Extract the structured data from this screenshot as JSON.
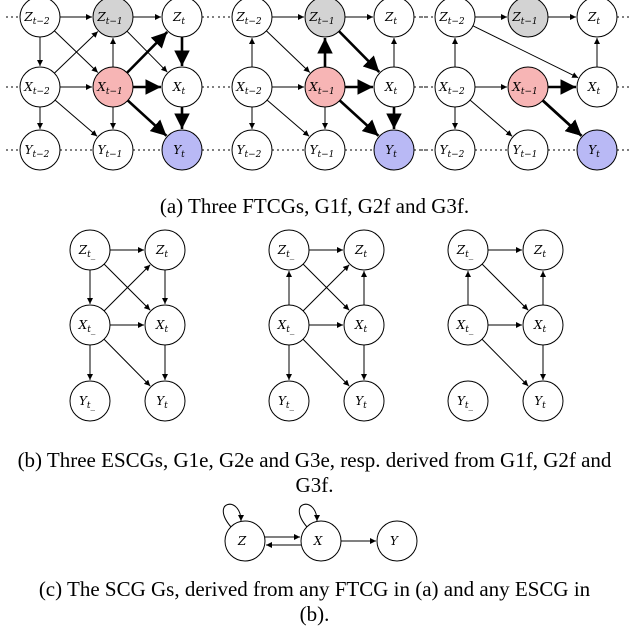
{
  "colors": {
    "stroke": "#000000",
    "grey": "#d3d3d3",
    "red": "#f7b5b5",
    "blue": "#b9b9f5",
    "white": "#ffffff"
  },
  "captions": {
    "a": "(a) Three FTCGs, G1f, G2f and G3f.",
    "b_line1": "(b) Three ESCGs, G1e, G2e and G3e, resp. derived from G1f, G2f and",
    "b_line2": "G3f.",
    "c_line1": "(c) The SCG Gs, derived from any FTCG in (a) and any ESCG in",
    "c_line2": "(b)."
  },
  "labels": {
    "Z_t-2": "Z",
    "Z_t-1": "Z",
    "Z_t": "Z",
    "X_t-2": "X",
    "X_t-1": "X",
    "X_t": "X",
    "Y_t-2": "Y",
    "Y_t-1": "Y",
    "Y_t": "Y",
    "Z_tm": "Z",
    "X_tm": "X",
    "Y_tm": "Y",
    "Z": "Z",
    "X": "X",
    "Y": "Y"
  },
  "subscripts": {
    "t-2": "t−2",
    "t-1": "t−1",
    "t": "t",
    "t_": "t_"
  }
}
